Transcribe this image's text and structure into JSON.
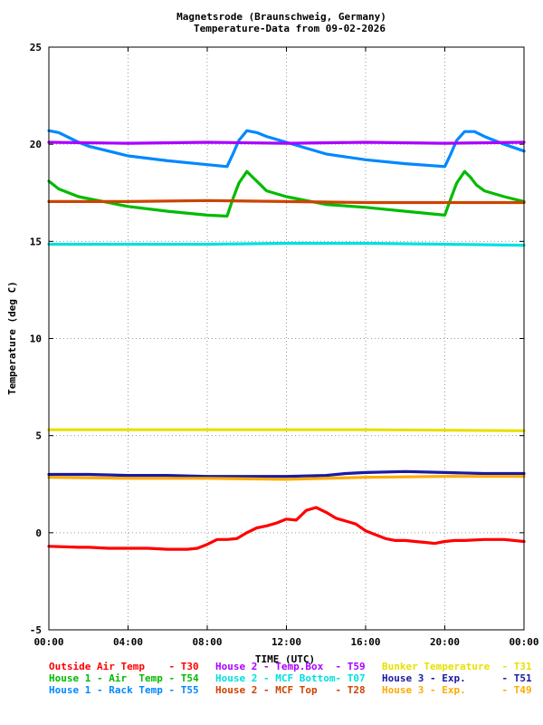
{
  "chart_data": {
    "type": "line",
    "title": "Magnetsrode (Braunschweig, Germany)",
    "subtitle": "Temperature-Data from 09-02-2026",
    "xlabel": "TIME (UTC)",
    "ylabel": "Temperature (deg C)",
    "xlim": [
      0,
      24
    ],
    "ylim": [
      -5,
      25
    ],
    "grid": true,
    "x_ticks": [
      "00:00",
      "04:00",
      "08:00",
      "12:00",
      "16:00",
      "20:00",
      "00:00"
    ],
    "y_ticks": [
      "-5",
      "0",
      "5",
      "10",
      "15",
      "20",
      "25"
    ],
    "series": [
      {
        "name": "Outside Air Temp",
        "sensor": "T30",
        "color": "#ff0000",
        "x": [
          0,
          1.5,
          2,
          3,
          4,
          5,
          6,
          7,
          7.5,
          8,
          8.5,
          9,
          9.5,
          10,
          10.5,
          11,
          11.5,
          12,
          12.5,
          13,
          13.5,
          14,
          14.5,
          15,
          15.5,
          16,
          16.5,
          17,
          17.5,
          18,
          18.5,
          19,
          19.5,
          20,
          20.5,
          21,
          22,
          23,
          24
        ],
        "values": [
          -0.7,
          -0.75,
          -0.75,
          -0.8,
          -0.8,
          -0.8,
          -0.85,
          -0.85,
          -0.8,
          -0.6,
          -0.35,
          -0.35,
          -0.3,
          0.0,
          0.25,
          0.35,
          0.5,
          0.7,
          0.65,
          1.15,
          1.3,
          1.05,
          0.75,
          0.6,
          0.45,
          0.1,
          -0.1,
          -0.3,
          -0.4,
          -0.4,
          -0.45,
          -0.5,
          -0.55,
          -0.45,
          -0.4,
          -0.4,
          -0.35,
          -0.35,
          -0.45
        ]
      },
      {
        "name": "House 1 - Air  Temp",
        "sensor": "T54",
        "color": "#00bb00",
        "x": [
          0,
          0.5,
          1.5,
          2,
          4,
          6,
          8,
          9,
          9.3,
          9.6,
          10,
          10.3,
          10.7,
          11,
          12,
          13,
          14,
          16,
          18,
          20,
          20.3,
          20.6,
          21,
          21.3,
          21.6,
          22,
          23,
          24
        ],
        "values": [
          18.1,
          17.7,
          17.3,
          17.2,
          16.8,
          16.55,
          16.35,
          16.3,
          17.2,
          18.0,
          18.6,
          18.3,
          17.9,
          17.6,
          17.3,
          17.1,
          16.9,
          16.75,
          16.55,
          16.35,
          17.2,
          18.0,
          18.6,
          18.3,
          17.9,
          17.6,
          17.3,
          17.05
        ]
      },
      {
        "name": "House 1 - Rack Temp",
        "sensor": "T55",
        "color": "#0088ff",
        "x": [
          0,
          0.5,
          1.5,
          2,
          4,
          6,
          8,
          9,
          9.3,
          9.6,
          10,
          10.5,
          11,
          12,
          13,
          14,
          16,
          18,
          20,
          20.3,
          20.6,
          21,
          21.5,
          22,
          23,
          24
        ],
        "values": [
          20.7,
          20.6,
          20.1,
          19.9,
          19.4,
          19.15,
          18.95,
          18.85,
          19.5,
          20.2,
          20.7,
          20.6,
          20.4,
          20.1,
          19.8,
          19.5,
          19.2,
          19.0,
          18.85,
          19.5,
          20.2,
          20.65,
          20.65,
          20.4,
          20.0,
          19.65
        ]
      },
      {
        "name": "House 2 - Temp.Box",
        "sensor": "T59",
        "color": "#aa00ff",
        "x": [
          0,
          4,
          8,
          12,
          16,
          20,
          24
        ],
        "values": [
          20.1,
          20.05,
          20.1,
          20.05,
          20.1,
          20.05,
          20.1
        ]
      },
      {
        "name": "House 2 - MCF Bottom",
        "sensor": "T07",
        "color": "#00e0e0",
        "x": [
          0,
          4,
          8,
          12,
          16,
          20,
          24
        ],
        "values": [
          14.85,
          14.85,
          14.85,
          14.9,
          14.9,
          14.85,
          14.8
        ]
      },
      {
        "name": "House 2 - MCF Top",
        "sensor": "T28",
        "color": "#cc4400",
        "x": [
          0,
          4,
          8,
          12,
          16,
          20,
          24
        ],
        "values": [
          17.05,
          17.05,
          17.1,
          17.05,
          17.0,
          17.0,
          17.0
        ]
      },
      {
        "name": "Bunker Temperature",
        "sensor": "T31",
        "color": "#e8e000",
        "x": [
          0,
          4,
          8,
          12,
          16,
          20,
          24
        ],
        "values": [
          5.3,
          5.3,
          5.3,
          5.3,
          5.3,
          5.28,
          5.25
        ]
      },
      {
        "name": "House 3 - Exp.",
        "sensor": "T51",
        "color": "#1a1aa0",
        "x": [
          0,
          2,
          4,
          6,
          8,
          10,
          12,
          14,
          15,
          16,
          18,
          20,
          22,
          24
        ],
        "values": [
          3.0,
          3.0,
          2.95,
          2.95,
          2.9,
          2.9,
          2.9,
          2.95,
          3.05,
          3.1,
          3.15,
          3.1,
          3.05,
          3.05
        ]
      },
      {
        "name": "House 3 - Exp.",
        "sensor": "T49",
        "color": "#ffaa00",
        "x": [
          0,
          4,
          8,
          12,
          16,
          20,
          24
        ],
        "values": [
          2.85,
          2.8,
          2.8,
          2.75,
          2.85,
          2.9,
          2.9
        ]
      }
    ],
    "legend": [
      [
        {
          "text": "Outside Air Temp    - T30",
          "color": "#ff0000"
        },
        {
          "text": "House 2 - Temp.Box  - T59",
          "color": "#aa00ff"
        },
        {
          "text": "Bunker Temperature  - T31",
          "color": "#e8e000"
        }
      ],
      [
        {
          "text": "House 1 - Air  Temp - T54",
          "color": "#00bb00"
        },
        {
          "text": "House 2 - MCF Bottom- T07",
          "color": "#00e0e0"
        },
        {
          "text": "House 3 - Exp.      - T51",
          "color": "#1a1aa0"
        }
      ],
      [
        {
          "text": "House 1 - Rack Temp - T55",
          "color": "#0088ff"
        },
        {
          "text": "House 2 - MCF Top   - T28",
          "color": "#cc4400"
        },
        {
          "text": "House 3 - Exp.      - T49",
          "color": "#ffaa00"
        }
      ]
    ]
  }
}
